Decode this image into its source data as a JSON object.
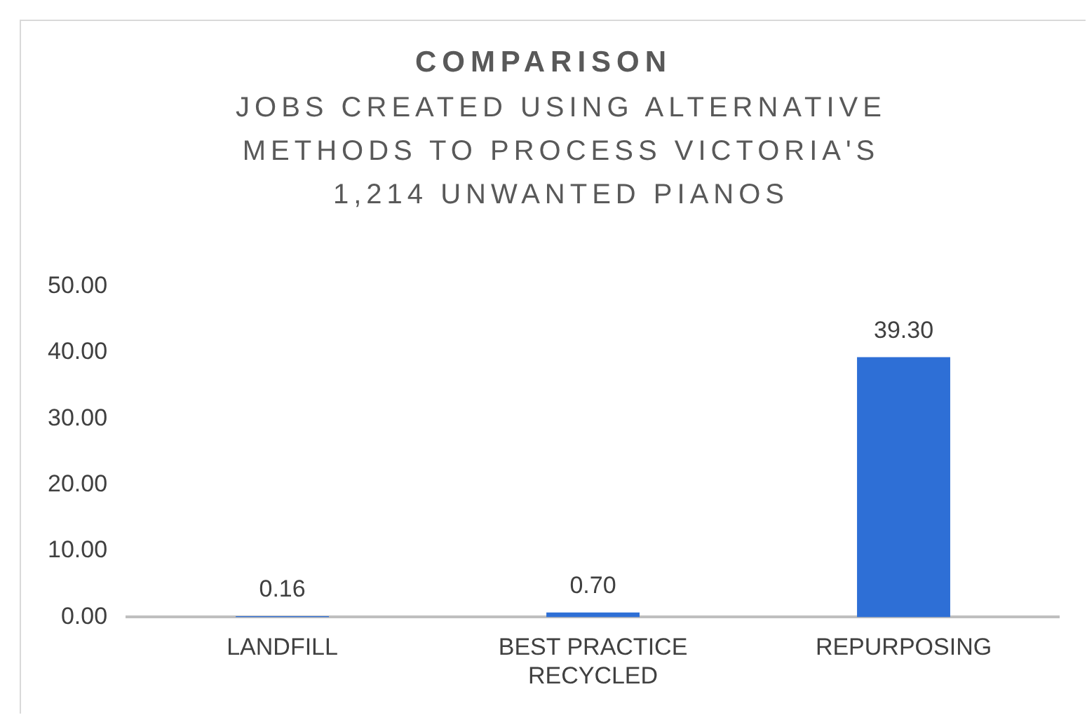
{
  "chart_data": {
    "type": "bar",
    "title": "COMPARISON",
    "subtitle": "JOBS CREATED USING ALTERNATIVE METHODS TO PROCESS VICTORIA'S 1,214 UNWANTED PIANOS",
    "categories": [
      "LANDFILL",
      "BEST PRACTICE RECYCLED",
      "REPURPOSING"
    ],
    "values": [
      0.16,
      0.7,
      39.3
    ],
    "value_labels": [
      "0.16",
      "0.70",
      "39.30"
    ],
    "color": "#2e6fd6",
    "ylim": [
      0,
      50
    ],
    "yticks": [
      {
        "value": 0,
        "label": "0.00"
      },
      {
        "value": 10,
        "label": "10.00"
      },
      {
        "value": 20,
        "label": "20.00"
      },
      {
        "value": 30,
        "label": "30.00"
      },
      {
        "value": 40,
        "label": "40.00"
      },
      {
        "value": 50,
        "label": "50.00"
      }
    ],
    "grid": false,
    "legend": false
  }
}
